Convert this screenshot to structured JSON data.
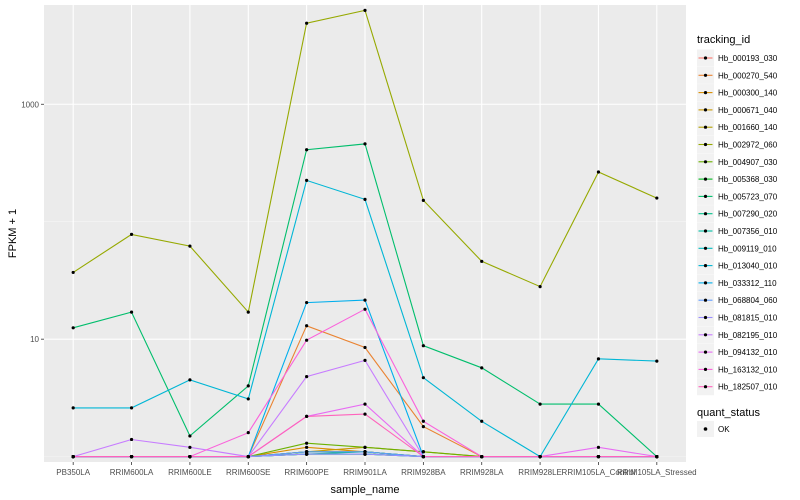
{
  "chart_data": {
    "type": "line",
    "xlabel": "sample_name",
    "ylabel": "FPKM + 1",
    "y_scale": "log10",
    "ylim": [
      0.9,
      7000
    ],
    "y_ticks": [
      10,
      1000
    ],
    "grid": true,
    "legend_position": "right",
    "categories": [
      "PB350LA",
      "RRIM600LA",
      "RRIM600LE",
      "RRIM600SE",
      "RRIM600PE",
      "RRIM901LA",
      "RRIM928BA",
      "RRIM928LA",
      "RRIM928LE",
      "RRIM105LA_Control",
      "RRIM105LA_Stressed"
    ],
    "category_labels": [
      "PB350LA",
      "RRIM600LA",
      "RRIM600LE",
      "RRIM600SE",
      "RRIM600PE",
      "RRIM901LA",
      "RRIM928BA",
      "RRIM928LA",
      "RRIM928LE",
      "RRIM105LA_Control",
      "RRIM105LA_Stressed"
    ],
    "legend_title": "tracking_id",
    "series": [
      {
        "name": "Hb_000193_030",
        "color": "#F8766D",
        "values": [
          1,
          1,
          1,
          1,
          1.1,
          1.1,
          1,
          1,
          1,
          1,
          1
        ]
      },
      {
        "name": "Hb_000270_540",
        "color": "#EA8331",
        "values": [
          1,
          1,
          1,
          1,
          13,
          8.5,
          1.8,
          1,
          1,
          1,
          1
        ]
      },
      {
        "name": "Hb_000300_140",
        "color": "#DB8E00",
        "values": [
          1,
          1,
          1,
          1,
          1.2,
          1.1,
          1,
          1,
          1,
          1,
          1
        ]
      },
      {
        "name": "Hb_000671_040",
        "color": "#C99800",
        "values": [
          1,
          1,
          1,
          1,
          1.1,
          1.2,
          1.1,
          1,
          1,
          1,
          1
        ]
      },
      {
        "name": "Hb_001660_140",
        "color": "#B3A000",
        "values": [
          1,
          1,
          1,
          1,
          1.05,
          1.05,
          1,
          1,
          1,
          1,
          1
        ]
      },
      {
        "name": "Hb_002972_060",
        "color": "#96A900",
        "values": [
          37,
          78,
          62,
          17,
          4900,
          6300,
          152,
          46,
          28,
          265,
          159
        ]
      },
      {
        "name": "Hb_004907_030",
        "color": "#6BB100",
        "values": [
          1,
          1,
          1,
          1,
          1.3,
          1.2,
          1.1,
          1,
          1,
          1,
          1
        ]
      },
      {
        "name": "Hb_005368_030",
        "color": "#00B81F",
        "values": [
          1,
          1,
          1,
          1,
          1.1,
          1.1,
          1,
          1,
          1,
          1,
          1
        ]
      },
      {
        "name": "Hb_005723_070",
        "color": "#00BE6C",
        "values": [
          12.5,
          17,
          1.5,
          4,
          410,
          460,
          8.8,
          5.7,
          2.8,
          2.8,
          1
        ]
      },
      {
        "name": "Hb_007290_020",
        "color": "#00C08B",
        "values": [
          1,
          1,
          1,
          1,
          1.05,
          1.1,
          1,
          1,
          1,
          1,
          1
        ]
      },
      {
        "name": "Hb_007356_010",
        "color": "#00C0A5",
        "values": [
          1,
          1,
          1,
          1,
          1.05,
          1.05,
          1,
          1,
          1,
          1,
          1
        ]
      },
      {
        "name": "Hb_009119_010",
        "color": "#00BCBE",
        "values": [
          1,
          1,
          1,
          1,
          1.05,
          1.05,
          1,
          1,
          1,
          1,
          1
        ]
      },
      {
        "name": "Hb_013040_010",
        "color": "#00B6D5",
        "values": [
          2.6,
          2.6,
          4.5,
          3.1,
          225,
          155,
          4.7,
          2,
          1,
          6.8,
          6.5
        ]
      },
      {
        "name": "Hb_033312_110",
        "color": "#00AEEC",
        "values": [
          1,
          1,
          1,
          1,
          20.5,
          21.5,
          1,
          1,
          1,
          1,
          1
        ]
      },
      {
        "name": "Hb_068804_060",
        "color": "#619CFF",
        "values": [
          1,
          1,
          1,
          1,
          1.1,
          1.1,
          1,
          1,
          1,
          1,
          1
        ]
      },
      {
        "name": "Hb_081815_010",
        "color": "#9A8DFF",
        "values": [
          1,
          1,
          1,
          1,
          1.05,
          1.05,
          1,
          1,
          1,
          1,
          1
        ]
      },
      {
        "name": "Hb_082195_010",
        "color": "#C77CFF",
        "values": [
          1,
          1.4,
          1.2,
          1,
          4.8,
          6.6,
          1,
          1,
          1,
          1,
          1
        ]
      },
      {
        "name": "Hb_094132_010",
        "color": "#E76BF3",
        "values": [
          1,
          1,
          1,
          1,
          2.2,
          2.8,
          1,
          1,
          1,
          1.2,
          1
        ]
      },
      {
        "name": "Hb_163132_010",
        "color": "#FA62DB",
        "values": [
          1,
          1,
          1,
          1.6,
          9.8,
          18,
          2,
          1,
          1,
          1,
          1
        ]
      },
      {
        "name": "Hb_182507_010",
        "color": "#FF62BC",
        "values": [
          1,
          1,
          1,
          1,
          2.2,
          2.3,
          1,
          1,
          1,
          1,
          1
        ]
      }
    ],
    "legend2_title": "quant_status",
    "legend2_items": [
      {
        "label": "OK",
        "symbol": "point"
      }
    ]
  }
}
